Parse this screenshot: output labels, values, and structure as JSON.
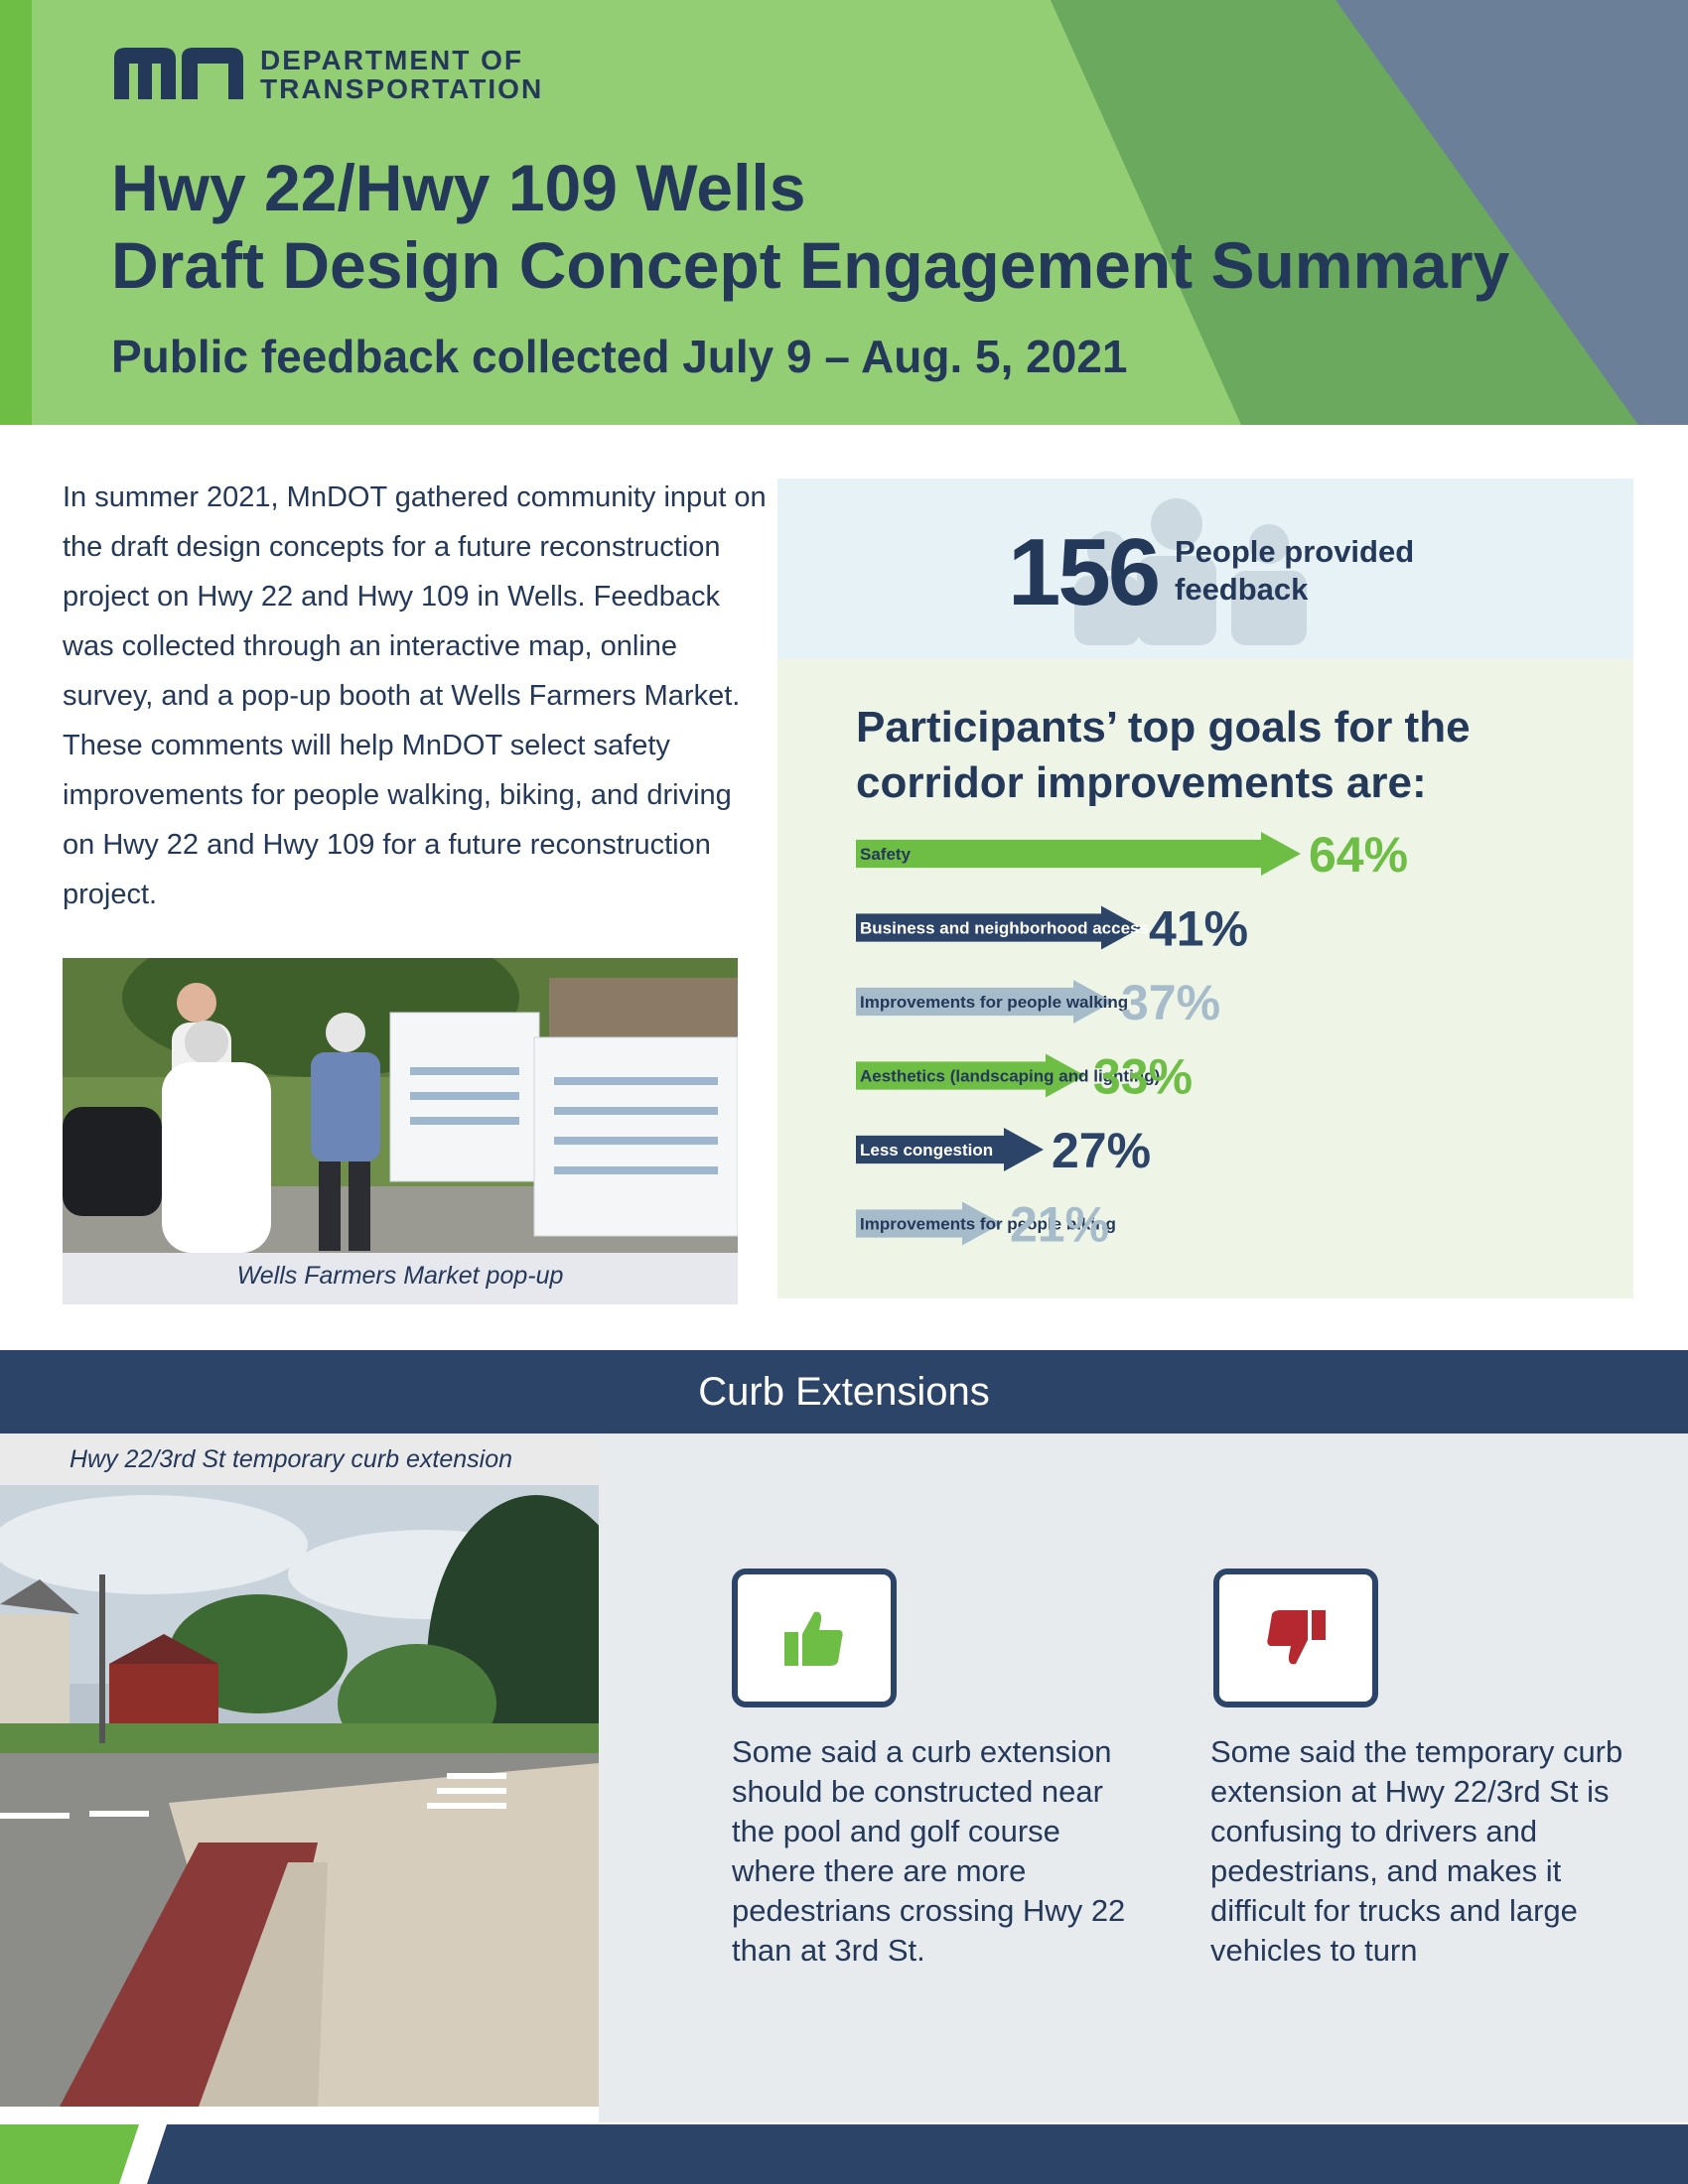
{
  "header": {
    "org_line1": "DEPARTMENT OF",
    "org_line2": "TRANSPORTATION",
    "title_line1": "Hwy 22/Hwy 109 Wells",
    "title_line2": "Draft Design Concept Engagement Summary",
    "subtitle": "Public feedback collected July 9 – Aug. 5, 2021"
  },
  "intro": {
    "text": "In summer 2021, MnDOT gathered community input on the draft design concepts for a future reconstruction project on Hwy 22 and Hwy 109 in Wells. Feedback was collected through an interactive map, online survey, and a pop-up booth at Wells Farmers Market. These comments will help MnDOT select safety improvements for people walking, biking, and driving on Hwy 22 and Hwy 109 for a future reconstruction project.",
    "photo_caption": "Wells Farmers Market pop-up"
  },
  "stats": {
    "count": "156",
    "count_label": "People provided feedback"
  },
  "chart_data": {
    "type": "bar",
    "title": "Participants’ top goals for the corridor improvements are:",
    "categories": [
      "Safety",
      "Business and neighborhood access",
      "Improvements for people walking",
      "Aesthetics (landscaping and lighting)",
      "Less congestion",
      "Improvements for people biking"
    ],
    "values": [
      64,
      41,
      37,
      33,
      27,
      21
    ],
    "labels": [
      "64%",
      "41%",
      "37%",
      "33%",
      "27%",
      "21%"
    ],
    "colors": [
      "#6ebd45",
      "#2d4469",
      "#a7bccb",
      "#6ebd45",
      "#2d4469",
      "#a7bccb"
    ]
  },
  "section": {
    "title": "Curb Extensions",
    "photo_caption": "Hwy 22/3rd St temporary curb extension",
    "positive": {
      "icon": "thumbs-up-icon",
      "text": "Some said a curb extension should be constructed near the pool and golf course where there are more pedestrians crossing Hwy 22 than at 3rd St."
    },
    "negative": {
      "icon": "thumbs-down-icon",
      "text": "Some said the temporary curb extension at Hwy 22/3rd St is confusing to drivers and pedestrians, and makes it difficult for trucks and large vehicles to turn"
    }
  },
  "colors": {
    "navy": "#24385a",
    "green": "#6ebd45",
    "light_green": "#93ce74",
    "slate": "#6b7f98"
  }
}
